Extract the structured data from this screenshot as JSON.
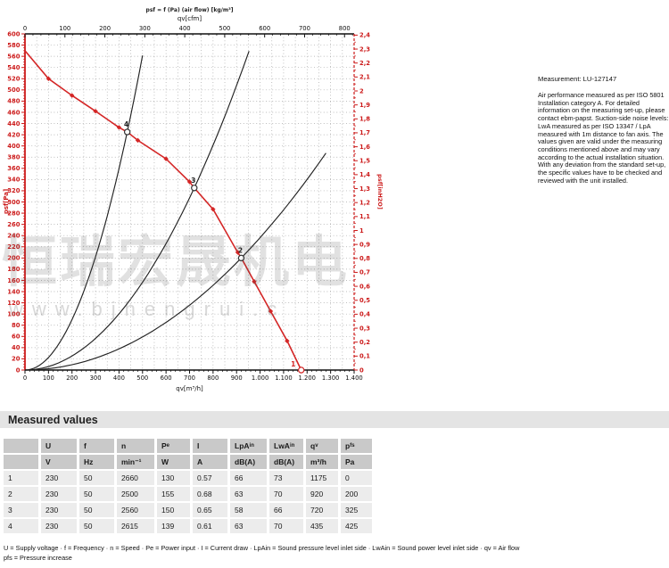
{
  "colors": {
    "red_axis": "#cc1b1b",
    "curve_red": "#d42626",
    "black": "#1a1a1a",
    "grid": "#a8a8a8"
  },
  "watermark": {
    "cn": "恒瑞宏晟机电",
    "url": "www.bjhengrui.c"
  },
  "measurement": {
    "title": "Measurement: LU-127147",
    "body": "Air performance measured as per ISO 5801 Installation category A. For detailed information on the measuring set-up, please contact ebm-papst. Suction-side noise levels: LwA measured as per ISO 13347 / LpA measured with 1m distance to fan axis. The values given are valid under the measuring conditions mentioned above and may vary according to the actual installation situation. With any deviation from the standard set-up, the specific values have to be checked and reviewed with the unit installed."
  },
  "chart_data": {
    "type": "line",
    "title": "psf = f (Pa) (air flow) [kg/m³]",
    "top_axis": {
      "label": "qv[cfm]",
      "min": 0,
      "max": 800,
      "major": 100,
      "minor": 20,
      "cfm_to_m3h": 1.699
    },
    "bottom_axis": {
      "label": "qv[m³/h]",
      "min": 0,
      "max": 1400,
      "major": 100,
      "minor": 20,
      "grid": 50
    },
    "left_axis": {
      "label": "psf[Pa]",
      "min": 0,
      "max": 600,
      "major": 20,
      "minor": 5
    },
    "right_axis": {
      "label": "psf[inH2O]",
      "min": 0,
      "max": 2.4,
      "major": 0.1,
      "minor": 0.05,
      "pa_per_unit": 249.08
    },
    "fan_curve": {
      "points": [
        [
          0,
          570
        ],
        [
          100,
          520
        ],
        [
          200,
          490
        ],
        [
          300,
          462
        ],
        [
          400,
          433
        ],
        [
          435,
          425
        ],
        [
          480,
          410
        ],
        [
          600,
          377
        ],
        [
          700,
          336
        ],
        [
          720,
          325
        ],
        [
          800,
          287
        ],
        [
          905,
          210
        ],
        [
          920,
          200
        ],
        [
          975,
          158
        ],
        [
          1045,
          105
        ],
        [
          1115,
          52
        ],
        [
          1175,
          0
        ]
      ]
    },
    "marker_points": [
      [
        100,
        520
      ],
      [
        200,
        490
      ],
      [
        300,
        462
      ],
      [
        400,
        433
      ],
      [
        480,
        410
      ],
      [
        600,
        377
      ],
      [
        700,
        336
      ],
      [
        800,
        287
      ],
      [
        905,
        210
      ],
      [
        975,
        158
      ],
      [
        1045,
        105
      ],
      [
        1115,
        52
      ]
    ],
    "operating_points": [
      {
        "label": "1",
        "qv": 1175,
        "p": 0,
        "red": true
      },
      {
        "label": "2",
        "qv": 920,
        "p": 200,
        "red": false
      },
      {
        "label": "3",
        "qv": 720,
        "p": 325,
        "red": false
      },
      {
        "label": "4",
        "qv": 435,
        "p": 425,
        "red": false
      }
    ],
    "system_curves": [
      {
        "k": 0.0022462,
        "q_end": 500
      },
      {
        "k": 0.0006269,
        "q_end": 953
      },
      {
        "k": 0.00023629,
        "q_end": 1280
      }
    ]
  },
  "measured_values": {
    "section_title": "Measured values",
    "columns": [
      {
        "main": ""
      },
      {
        "main": "U"
      },
      {
        "main": "f"
      },
      {
        "main": "n"
      },
      {
        "main": "P",
        "sub": "e"
      },
      {
        "main": "I"
      },
      {
        "main": "LpA",
        "sub": "in"
      },
      {
        "main": "LwA",
        "sub": "in"
      },
      {
        "main": "q",
        "sub": "v"
      },
      {
        "main": "p",
        "sub": "fs"
      }
    ],
    "units": [
      "",
      "V",
      "Hz",
      "min⁻¹",
      "W",
      "A",
      "dB(A)",
      "dB(A)",
      "m³/h",
      "Pa"
    ],
    "rows": [
      [
        "1",
        "230",
        "50",
        "2660",
        "130",
        "0.57",
        "66",
        "73",
        "1175",
        "0"
      ],
      [
        "2",
        "230",
        "50",
        "2500",
        "155",
        "0.68",
        "63",
        "70",
        "920",
        "200"
      ],
      [
        "3",
        "230",
        "50",
        "2560",
        "150",
        "0.65",
        "58",
        "66",
        "720",
        "325"
      ],
      [
        "4",
        "230",
        "50",
        "2615",
        "139",
        "0.61",
        "63",
        "70",
        "435",
        "425"
      ]
    ]
  },
  "footnotes": {
    "line1": "U = Supply voltage · f = Frequency · n = Speed · Pe = Power input · I = Current draw · LpAin = Sound pressure level inlet side · LwAin = Sound power level inlet side · qv = Air flow",
    "line2": "pfs = Pressure increase"
  }
}
